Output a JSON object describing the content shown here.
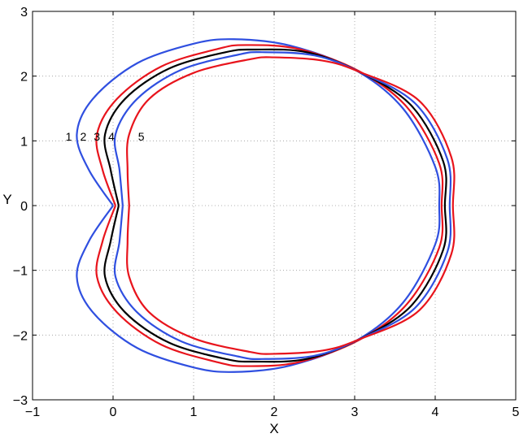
{
  "chart_data": {
    "type": "line",
    "title": "",
    "xlabel": "X",
    "ylabel": "Y",
    "xlim": [
      -1,
      5
    ],
    "ylim": [
      -3,
      3
    ],
    "xticks": [
      -1,
      0,
      1,
      2,
      3,
      4,
      5
    ],
    "yticks": [
      -3,
      -2,
      -1,
      0,
      1,
      2,
      3
    ],
    "grid": true,
    "curve_labels": [
      {
        "text": "1",
        "x": -0.55,
        "y": 1.07
      },
      {
        "text": "2",
        "x": -0.37,
        "y": 1.07
      },
      {
        "text": "3",
        "x": -0.2,
        "y": 1.07
      },
      {
        "text": "4",
        "x": -0.02,
        "y": 1.07
      },
      {
        "text": "5",
        "x": 0.35,
        "y": 1.07
      }
    ],
    "series": [
      {
        "color": "#2f4fe0",
        "points": [
          [
            0.0,
            0.0
          ],
          [
            -0.3,
            0.55
          ],
          [
            -0.45,
            1.1
          ],
          [
            -0.25,
            1.65
          ],
          [
            0.3,
            2.2
          ],
          [
            1.0,
            2.5
          ],
          [
            1.5,
            2.57
          ],
          [
            2.2,
            2.47
          ],
          [
            3.0,
            2.1
          ],
          [
            3.6,
            1.5
          ],
          [
            4.0,
            0.6
          ],
          [
            4.05,
            0.0
          ]
        ]
      },
      {
        "color": "#e8141c",
        "points": [
          [
            0.03,
            0.0
          ],
          [
            -0.13,
            0.55
          ],
          [
            -0.2,
            1.1
          ],
          [
            0.05,
            1.65
          ],
          [
            0.6,
            2.15
          ],
          [
            1.3,
            2.42
          ],
          [
            1.65,
            2.48
          ],
          [
            2.3,
            2.42
          ],
          [
            3.05,
            2.08
          ],
          [
            3.65,
            1.52
          ],
          [
            4.05,
            0.65
          ],
          [
            4.08,
            0.0
          ]
        ]
      },
      {
        "color": "#000000",
        "points": [
          [
            0.07,
            0.0
          ],
          [
            -0.03,
            0.55
          ],
          [
            -0.1,
            1.1
          ],
          [
            0.15,
            1.65
          ],
          [
            0.7,
            2.12
          ],
          [
            1.4,
            2.37
          ],
          [
            1.75,
            2.41
          ],
          [
            2.4,
            2.37
          ],
          [
            3.05,
            2.07
          ],
          [
            3.7,
            1.55
          ],
          [
            4.1,
            0.68
          ],
          [
            4.12,
            0.0
          ]
        ]
      },
      {
        "color": "#2f4fe0",
        "points": [
          [
            0.12,
            0.0
          ],
          [
            0.08,
            0.55
          ],
          [
            0.03,
            1.1
          ],
          [
            0.3,
            1.65
          ],
          [
            0.85,
            2.1
          ],
          [
            1.55,
            2.33
          ],
          [
            1.85,
            2.37
          ],
          [
            2.5,
            2.32
          ],
          [
            3.05,
            2.07
          ],
          [
            3.75,
            1.58
          ],
          [
            4.15,
            0.72
          ],
          [
            4.18,
            0.0
          ]
        ]
      },
      {
        "color": "#e8141c",
        "points": [
          [
            0.2,
            0.0
          ],
          [
            0.18,
            0.55
          ],
          [
            0.2,
            1.1
          ],
          [
            0.45,
            1.65
          ],
          [
            1.0,
            2.05
          ],
          [
            1.7,
            2.26
          ],
          [
            2.0,
            2.29
          ],
          [
            2.6,
            2.24
          ],
          [
            3.05,
            2.07
          ],
          [
            3.8,
            1.62
          ],
          [
            4.2,
            0.75
          ],
          [
            4.22,
            0.0
          ]
        ]
      }
    ]
  }
}
